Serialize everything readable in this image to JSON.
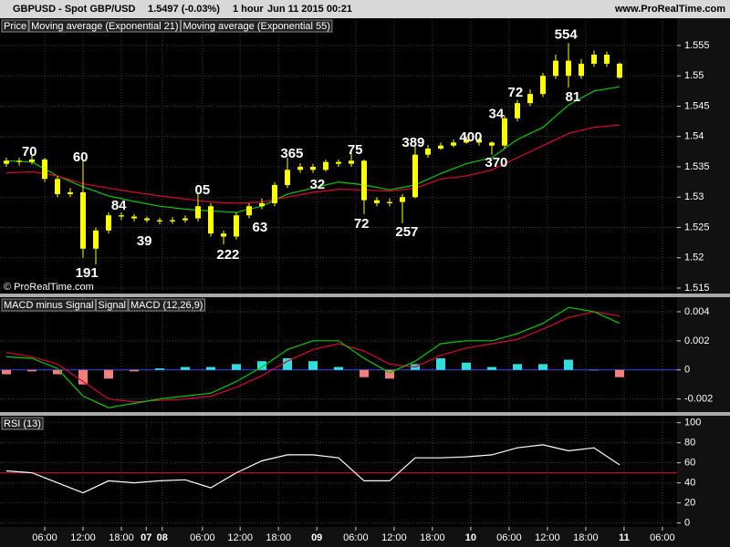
{
  "header": {
    "symbol": "GBPUSD - Spot GBP/USD",
    "quote": "1.5497 (-0.03%)",
    "timeframe": "1 hour",
    "timestamp": "Jun 11 2015 00:21",
    "site": "www.ProRealTime.com"
  },
  "chart_data": [
    {
      "type": "candlestick",
      "name": "Price",
      "color": "#ffff00",
      "watermark": "© ProRealTime.com",
      "x": [
        1,
        3,
        5,
        7,
        9,
        11,
        13,
        15,
        17,
        19,
        21,
        23,
        25,
        27,
        29,
        31,
        33,
        35,
        37,
        39,
        41,
        43,
        45,
        47,
        49,
        51,
        53,
        55,
        57,
        59,
        61,
        63,
        65,
        67,
        69,
        71,
        73,
        75,
        77,
        79,
        81,
        83,
        85,
        87,
        89,
        91,
        93,
        95,
        97
      ],
      "open": [
        1.5355,
        1.536,
        1.5358,
        1.5362,
        1.533,
        1.5305,
        1.5308,
        1.5215,
        1.5245,
        1.527,
        1.5268,
        1.5265,
        1.5262,
        1.526,
        1.5262,
        1.5265,
        1.5285,
        1.524,
        1.5235,
        1.527,
        1.5285,
        1.529,
        1.532,
        1.5345,
        1.535,
        1.5345,
        1.5358,
        1.5355,
        1.536,
        1.5295,
        1.529,
        1.5292,
        1.53,
        1.537,
        1.538,
        1.5385,
        1.539,
        1.5395,
        1.539,
        1.5385,
        1.543,
        1.5455,
        1.547,
        1.55,
        1.5525,
        1.55,
        1.552,
        1.5535,
        1.552
      ],
      "high": [
        1.5365,
        1.5365,
        1.5368,
        1.5365,
        1.5335,
        1.5315,
        1.536,
        1.525,
        1.5275,
        1.5275,
        1.5272,
        1.5268,
        1.5266,
        1.5267,
        1.527,
        1.5305,
        1.529,
        1.5245,
        1.5275,
        1.529,
        1.5298,
        1.5325,
        1.5365,
        1.5356,
        1.5355,
        1.5362,
        1.5362,
        1.5375,
        1.5362,
        1.53,
        1.5298,
        1.5305,
        1.5389,
        1.5386,
        1.539,
        1.5395,
        1.54,
        1.5398,
        1.5392,
        1.5435,
        1.546,
        1.5478,
        1.5505,
        1.5535,
        1.5554,
        1.5528,
        1.5542,
        1.554,
        1.5522
      ],
      "low": [
        1.535,
        1.5352,
        1.5354,
        1.5325,
        1.53,
        1.53,
        1.52,
        1.5189,
        1.524,
        1.5262,
        1.526,
        1.5258,
        1.5255,
        1.5256,
        1.5258,
        1.526,
        1.5235,
        1.5222,
        1.523,
        1.5265,
        1.528,
        1.5285,
        1.5315,
        1.534,
        1.534,
        1.5342,
        1.535,
        1.535,
        1.5272,
        1.5285,
        1.5285,
        1.5257,
        1.5298,
        1.5365,
        1.5378,
        1.5382,
        1.5388,
        1.5385,
        1.537,
        1.538,
        1.5425,
        1.545,
        1.5465,
        1.5495,
        1.5481,
        1.5495,
        1.5515,
        1.5515,
        1.5495
      ],
      "close": [
        1.536,
        1.5358,
        1.5362,
        1.533,
        1.5305,
        1.5308,
        1.5215,
        1.5245,
        1.527,
        1.5268,
        1.5265,
        1.5262,
        1.526,
        1.5262,
        1.5265,
        1.5285,
        1.524,
        1.5235,
        1.527,
        1.5285,
        1.529,
        1.532,
        1.5345,
        1.535,
        1.5345,
        1.5358,
        1.5355,
        1.536,
        1.5295,
        1.529,
        1.5292,
        1.53,
        1.537,
        1.538,
        1.5385,
        1.539,
        1.5395,
        1.539,
        1.5385,
        1.543,
        1.5455,
        1.547,
        1.55,
        1.5525,
        1.55,
        1.552,
        1.5535,
        1.552,
        1.5497
      ],
      "series": [
        {
          "name": "Moving average (Exponential 21)",
          "color": "#00cc00",
          "x": [
            1,
            5,
            9,
            13,
            17,
            21,
            25,
            29,
            33,
            37,
            41,
            45,
            49,
            53,
            57,
            61,
            65,
            69,
            73,
            77,
            81,
            85,
            89,
            93,
            97
          ],
          "values": [
            1.536,
            1.5358,
            1.5335,
            1.5317,
            1.5302,
            1.5293,
            1.5285,
            1.528,
            1.5277,
            1.5275,
            1.5285,
            1.5305,
            1.5315,
            1.5325,
            1.532,
            1.5312,
            1.532,
            1.5339,
            1.5355,
            1.5365,
            1.5395,
            1.5415,
            1.5452,
            1.5475,
            1.5482
          ]
        },
        {
          "name": "Moving average (Exponential 55)",
          "color": "#dd0033",
          "x": [
            1,
            5,
            9,
            13,
            17,
            21,
            25,
            29,
            33,
            37,
            41,
            45,
            49,
            53,
            57,
            61,
            65,
            69,
            73,
            77,
            81,
            85,
            89,
            93,
            97
          ],
          "values": [
            1.534,
            1.5342,
            1.5335,
            1.5322,
            1.5315,
            1.5308,
            1.5302,
            1.5297,
            1.5292,
            1.529,
            1.5292,
            1.53,
            1.5308,
            1.5313,
            1.5312,
            1.531,
            1.5315,
            1.533,
            1.5335,
            1.5345,
            1.5365,
            1.5385,
            1.5405,
            1.5415,
            1.5419
          ]
        }
      ],
      "annotations": [
        {
          "text": "70",
          "x": 4.6,
          "y": 1.5374
        },
        {
          "text": "60",
          "x": 12.6,
          "y": 1.5365
        },
        {
          "text": "84",
          "x": 18.6,
          "y": 1.5285
        },
        {
          "text": "39",
          "x": 22.6,
          "y": 1.5227
        },
        {
          "text": "191",
          "x": 13.6,
          "y": 1.5174
        },
        {
          "text": "05",
          "x": 31.7,
          "y": 1.5311
        },
        {
          "text": "222",
          "x": 35.7,
          "y": 1.5204
        },
        {
          "text": "63",
          "x": 40.7,
          "y": 1.5249
        },
        {
          "text": "365",
          "x": 45.7,
          "y": 1.5371
        },
        {
          "text": "32",
          "x": 49.7,
          "y": 1.532
        },
        {
          "text": "75",
          "x": 55.6,
          "y": 1.5377
        },
        {
          "text": "72",
          "x": 56.6,
          "y": 1.5255
        },
        {
          "text": "257",
          "x": 63.7,
          "y": 1.5242
        },
        {
          "text": "389",
          "x": 64.7,
          "y": 1.5389
        },
        {
          "text": "400",
          "x": 73.7,
          "y": 1.5398
        },
        {
          "text": "370",
          "x": 77.7,
          "y": 1.5356
        },
        {
          "text": "34",
          "x": 77.7,
          "y": 1.5436
        },
        {
          "text": "72",
          "x": 80.7,
          "y": 1.5472
        },
        {
          "text": "554",
          "x": 88.6,
          "y": 1.5567
        },
        {
          "text": "81",
          "x": 89.7,
          "y": 1.5464
        }
      ],
      "xlim": [
        0,
        106
      ],
      "ylim": [
        1.5141,
        1.5595
      ],
      "yticks": [
        1.515,
        1.52,
        1.525,
        1.53,
        1.535,
        1.54,
        1.545,
        1.55,
        1.555
      ],
      "grid": true
    },
    {
      "type": "macd",
      "xlim": [
        0,
        106
      ],
      "ylim": [
        -0.0029,
        0.005
      ],
      "yticks": [
        0.004,
        0.002,
        0,
        -0.002
      ],
      "grid": true,
      "zero_color": "#3344ff",
      "series": [
        {
          "name": "MACD minus Signal",
          "type": "bar",
          "color": "#f08080",
          "positive_color": "#33dddd",
          "negative_color": "#f08080",
          "x": [
            1,
            5,
            9,
            13,
            17,
            21,
            25,
            29,
            33,
            37,
            41,
            45,
            49,
            53,
            57,
            61,
            65,
            69,
            73,
            77,
            81,
            85,
            89,
            93,
            97
          ],
          "values": [
            -0.0003,
            -0.0001,
            -0.0003,
            -0.001,
            -0.0006,
            -0.0001,
            0.0001,
            0.0002,
            0.0002,
            0.0004,
            0.0006,
            0.0008,
            0.0006,
            0.0002,
            -0.0005,
            -0.0006,
            0.0004,
            0.0008,
            0.0005,
            0.0002,
            0.0004,
            0.0004,
            0.0007,
            0,
            -0.0005
          ]
        },
        {
          "name": "Signal",
          "type": "line",
          "color": "#dd0033",
          "x": [
            1,
            5,
            9,
            13,
            17,
            21,
            25,
            29,
            33,
            37,
            41,
            45,
            49,
            53,
            57,
            61,
            65,
            69,
            73,
            77,
            81,
            85,
            89,
            93,
            97
          ],
          "values": [
            0.0012,
            0.0009,
            0.0004,
            -0.0008,
            -0.002,
            -0.0022,
            -0.0021,
            -0.002,
            -0.0018,
            -0.0012,
            -0.0004,
            0.0006,
            0.0014,
            0.0018,
            0.0013,
            0.0004,
            0.0002,
            0.001,
            0.0015,
            0.0018,
            0.0021,
            0.0028,
            0.0036,
            0.004,
            0.0037
          ]
        },
        {
          "name": "MACD (12,26,9)",
          "type": "line",
          "color": "#00cc00",
          "x": [
            1,
            5,
            9,
            13,
            17,
            21,
            25,
            29,
            33,
            37,
            41,
            45,
            49,
            53,
            57,
            61,
            65,
            69,
            73,
            77,
            81,
            85,
            89,
            93,
            97
          ],
          "values": [
            0.0009,
            0.0008,
            0.0001,
            -0.0018,
            -0.0026,
            -0.0023,
            -0.002,
            -0.0018,
            -0.0016,
            -0.0008,
            0.0002,
            0.0014,
            0.002,
            0.002,
            0.0008,
            -0.0002,
            0.0006,
            0.0018,
            0.002,
            0.002,
            0.0025,
            0.0032,
            0.0043,
            0.004,
            0.0032
          ]
        }
      ]
    },
    {
      "type": "line",
      "xlim": [
        0,
        106
      ],
      "ylim": [
        -4,
        107
      ],
      "yticks": [
        0,
        20,
        40,
        60,
        80,
        100
      ],
      "grid": true,
      "level": 50,
      "level_color": "#dd0033",
      "series": [
        {
          "name": "RSI (13)",
          "color": "#ffffff",
          "x": [
            1,
            5,
            9,
            13,
            17,
            21,
            25,
            29,
            33,
            37,
            41,
            45,
            49,
            53,
            57,
            61,
            65,
            69,
            73,
            77,
            81,
            85,
            89,
            93,
            97
          ],
          "values": [
            52,
            50,
            40,
            30,
            42,
            40,
            42,
            43,
            35,
            50,
            62,
            68,
            68,
            65,
            42,
            42,
            65,
            65,
            66,
            68,
            75,
            78,
            72,
            75,
            58
          ]
        }
      ],
      "xticks": [
        {
          "value": 7,
          "label": "06:00"
        },
        {
          "value": 13,
          "label": "12:00"
        },
        {
          "value": 19,
          "label": "18:00"
        },
        {
          "value": 22.9,
          "label": "07"
        },
        {
          "value": 25.4,
          "label": "08"
        },
        {
          "value": 31.7,
          "label": "06:00"
        },
        {
          "value": 37.6,
          "label": "12:00"
        },
        {
          "value": 43.6,
          "label": "18:00"
        },
        {
          "value": 49.6,
          "label": "09"
        },
        {
          "value": 55.7,
          "label": "06:00"
        },
        {
          "value": 61.7,
          "label": "12:00"
        },
        {
          "value": 67.7,
          "label": "18:00"
        },
        {
          "value": 73.7,
          "label": "10"
        },
        {
          "value": 79.7,
          "label": "06:00"
        },
        {
          "value": 85.7,
          "label": "12:00"
        },
        {
          "value": 91.7,
          "label": "18:00"
        },
        {
          "value": 97.7,
          "label": "11"
        },
        {
          "value": 103.7,
          "label": "06:00"
        }
      ]
    }
  ]
}
